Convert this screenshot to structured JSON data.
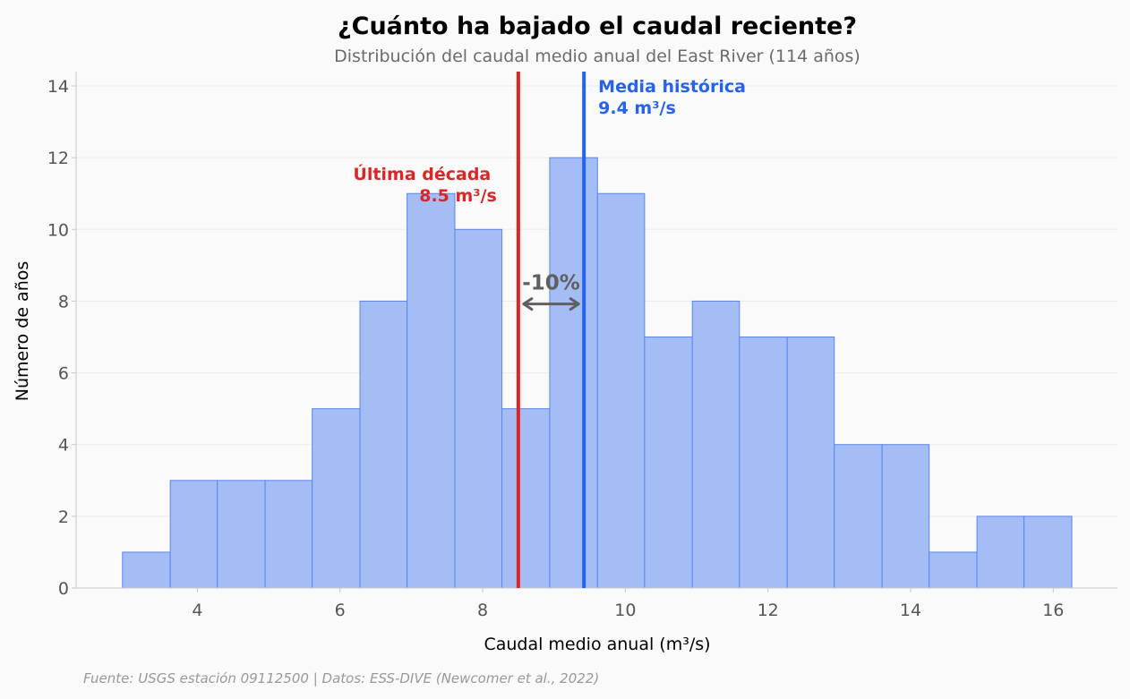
{
  "chart_data": {
    "type": "bar",
    "title": "¿Cuánto ha bajado el caudal reciente?",
    "subtitle": "Distribución del caudal medio anual del East River (114 años)",
    "xlabel": "Caudal medio anual (m³/s)",
    "ylabel": "Número de años",
    "xlim": [
      2.3,
      16.9
    ],
    "ylim": [
      0,
      14.4
    ],
    "xticks": [
      4,
      6,
      8,
      10,
      12,
      14,
      16
    ],
    "yticks": [
      0,
      2,
      4,
      6,
      8,
      10,
      12,
      14
    ],
    "grid": "horizontal",
    "bins": [
      {
        "start": 2.95,
        "end": 3.62,
        "count": 1
      },
      {
        "start": 3.62,
        "end": 4.28,
        "count": 3
      },
      {
        "start": 4.28,
        "end": 4.95,
        "count": 3
      },
      {
        "start": 4.95,
        "end": 5.61,
        "count": 3
      },
      {
        "start": 5.61,
        "end": 6.28,
        "count": 5
      },
      {
        "start": 6.28,
        "end": 6.94,
        "count": 8
      },
      {
        "start": 6.94,
        "end": 7.61,
        "count": 11
      },
      {
        "start": 7.61,
        "end": 8.27,
        "count": 10
      },
      {
        "start": 8.27,
        "end": 8.94,
        "count": 5
      },
      {
        "start": 8.94,
        "end": 9.61,
        "count": 12
      },
      {
        "start": 9.61,
        "end": 10.27,
        "count": 11
      },
      {
        "start": 10.27,
        "end": 10.94,
        "count": 7
      },
      {
        "start": 10.94,
        "end": 11.6,
        "count": 8
      },
      {
        "start": 11.6,
        "end": 12.27,
        "count": 7
      },
      {
        "start": 12.27,
        "end": 12.93,
        "count": 7
      },
      {
        "start": 12.93,
        "end": 13.6,
        "count": 4
      },
      {
        "start": 13.6,
        "end": 14.26,
        "count": 4
      },
      {
        "start": 14.26,
        "end": 14.93,
        "count": 1
      },
      {
        "start": 14.93,
        "end": 15.59,
        "count": 2
      },
      {
        "start": 15.59,
        "end": 16.26,
        "count": 2
      }
    ],
    "reference_lines": [
      {
        "name": "decade",
        "value": 8.5,
        "label_line1": "Última década",
        "label_line2": "8.5 m³/s",
        "color": "#dc2626"
      },
      {
        "name": "historic",
        "value": 9.42,
        "label_line1": "Media histórica",
        "label_line2": "9.4 m³/s",
        "color": "#2563eb"
      }
    ],
    "difference_label": "-10%",
    "bar_fill": "#a5bdf5",
    "bar_stroke": "#5b86ea"
  },
  "source": "Fuente: USGS estación 09112500 | Datos: ESS-DIVE (Newcomer et al., 2022)"
}
